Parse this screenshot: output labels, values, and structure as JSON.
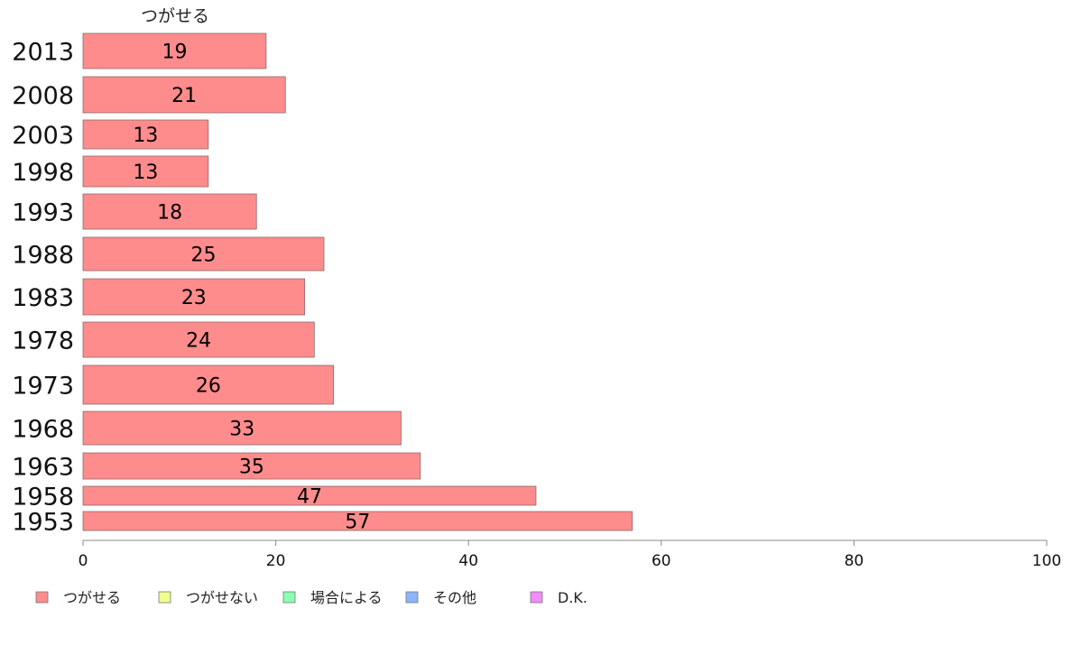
{
  "chart_data": {
    "type": "bar",
    "orientation": "horizontal",
    "title": "",
    "series_label": "つがせる",
    "categories": [
      "2013",
      "2008",
      "2003",
      "1998",
      "1993",
      "1988",
      "1983",
      "1978",
      "1973",
      "1968",
      "1963",
      "1958",
      "1953"
    ],
    "series": [
      {
        "name": "つがせる",
        "values": [
          19,
          21,
          13,
          13,
          18,
          25,
          23,
          24,
          26,
          33,
          35,
          47,
          57
        ],
        "color": "#ff8c8c"
      }
    ],
    "xlim": [
      0,
      100
    ],
    "xticks": [
      "0",
      "20",
      "40",
      "60",
      "80",
      "100"
    ],
    "grid": false,
    "legend": {
      "placement": "bottom-left",
      "items": [
        {
          "label": "つがせる",
          "color": "#ff8c8c"
        },
        {
          "label": "つがせない",
          "color": "#f0ff8c"
        },
        {
          "label": "場合による",
          "color": "#8cffb4"
        },
        {
          "label": "その他",
          "color": "#8cb4ff"
        },
        {
          "label": "D.K.",
          "color": "#f08cff"
        }
      ]
    }
  }
}
